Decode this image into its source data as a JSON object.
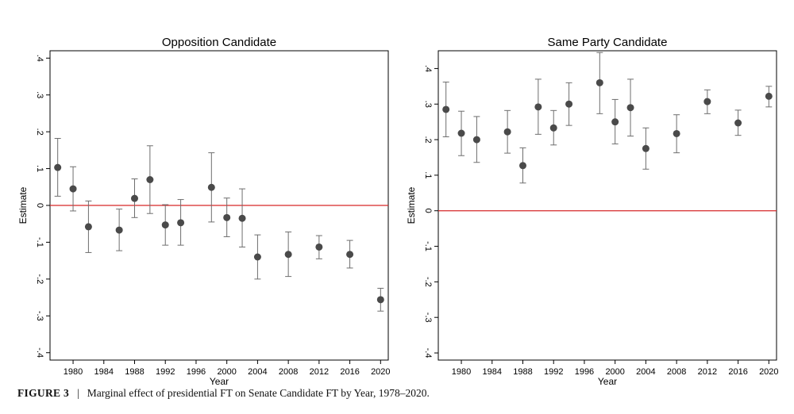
{
  "chart_data": [
    {
      "type": "scatter",
      "title": "Opposition Candidate",
      "xlabel": "Year",
      "ylabel": "Estimate",
      "x_ticks": [
        1980,
        1984,
        1988,
        1992,
        1996,
        2000,
        2004,
        2008,
        2012,
        2016,
        2020
      ],
      "x_tick_labels": [
        "1980",
        "1984",
        "1988",
        "1992",
        "1996",
        "2000",
        "2004",
        "2008",
        "2012",
        "2016",
        "2020"
      ],
      "xlim": [
        1977,
        2021
      ],
      "y_ticks": [
        -0.4,
        -0.3,
        -0.2,
        -0.1,
        0,
        0.1,
        0.2,
        0.3,
        0.4
      ],
      "y_tick_labels": [
        "-.4",
        "-.3",
        "-.2",
        "-.1",
        "0",
        ".1",
        ".2",
        ".3",
        ".4"
      ],
      "ylim": [
        -0.42,
        0.42
      ],
      "reference_line": 0,
      "points": [
        {
          "x": 1978,
          "y": 0.103,
          "lo": 0.025,
          "hi": 0.182
        },
        {
          "x": 1980,
          "y": 0.045,
          "lo": -0.015,
          "hi": 0.105
        },
        {
          "x": 1982,
          "y": -0.058,
          "lo": -0.128,
          "hi": 0.012
        },
        {
          "x": 1986,
          "y": -0.067,
          "lo": -0.123,
          "hi": -0.01
        },
        {
          "x": 1988,
          "y": 0.019,
          "lo": -0.033,
          "hi": 0.072
        },
        {
          "x": 1990,
          "y": 0.07,
          "lo": -0.022,
          "hi": 0.162
        },
        {
          "x": 1992,
          "y": -0.053,
          "lo": -0.108,
          "hi": 0.002
        },
        {
          "x": 1994,
          "y": -0.047,
          "lo": -0.108,
          "hi": 0.016
        },
        {
          "x": 1998,
          "y": 0.049,
          "lo": -0.045,
          "hi": 0.143
        },
        {
          "x": 2000,
          "y": -0.033,
          "lo": -0.085,
          "hi": 0.02
        },
        {
          "x": 2002,
          "y": -0.035,
          "lo": -0.113,
          "hi": 0.045
        },
        {
          "x": 2004,
          "y": -0.14,
          "lo": -0.2,
          "hi": -0.08
        },
        {
          "x": 2008,
          "y": -0.133,
          "lo": -0.193,
          "hi": -0.072
        },
        {
          "x": 2012,
          "y": -0.113,
          "lo": -0.145,
          "hi": -0.082
        },
        {
          "x": 2016,
          "y": -0.133,
          "lo": -0.17,
          "hi": -0.095
        },
        {
          "x": 2020,
          "y": -0.256,
          "lo": -0.287,
          "hi": -0.225
        }
      ]
    },
    {
      "type": "scatter",
      "title": "Same Party Candidate",
      "xlabel": "Year",
      "ylabel": "Estimate",
      "x_ticks": [
        1980,
        1984,
        1988,
        1992,
        1996,
        2000,
        2004,
        2008,
        2012,
        2016,
        2020
      ],
      "x_tick_labels": [
        "1980",
        "1984",
        "1988",
        "1992",
        "1996",
        "2000",
        "2004",
        "2008",
        "2012",
        "2016",
        "2020"
      ],
      "xlim": [
        1977,
        2021
      ],
      "y_ticks": [
        -0.4,
        -0.3,
        -0.2,
        -0.1,
        0,
        0.1,
        0.2,
        0.3,
        0.4
      ],
      "y_tick_labels": [
        "-.4",
        "-.3",
        "-.2",
        "-.1",
        "0",
        ".1",
        ".2",
        ".3",
        ".4"
      ],
      "ylim": [
        -0.42,
        0.45
      ],
      "reference_line": 0,
      "points": [
        {
          "x": 1978,
          "y": 0.285,
          "lo": 0.208,
          "hi": 0.362
        },
        {
          "x": 1980,
          "y": 0.218,
          "lo": 0.155,
          "hi": 0.28
        },
        {
          "x": 1982,
          "y": 0.2,
          "lo": 0.136,
          "hi": 0.265
        },
        {
          "x": 1986,
          "y": 0.222,
          "lo": 0.162,
          "hi": 0.282
        },
        {
          "x": 1988,
          "y": 0.127,
          "lo": 0.078,
          "hi": 0.177
        },
        {
          "x": 1990,
          "y": 0.292,
          "lo": 0.215,
          "hi": 0.37
        },
        {
          "x": 1992,
          "y": 0.233,
          "lo": 0.185,
          "hi": 0.282
        },
        {
          "x": 1994,
          "y": 0.3,
          "lo": 0.24,
          "hi": 0.36
        },
        {
          "x": 1998,
          "y": 0.36,
          "lo": 0.273,
          "hi": 0.445
        },
        {
          "x": 2000,
          "y": 0.25,
          "lo": 0.188,
          "hi": 0.313
        },
        {
          "x": 2002,
          "y": 0.29,
          "lo": 0.21,
          "hi": 0.37
        },
        {
          "x": 2004,
          "y": 0.175,
          "lo": 0.117,
          "hi": 0.233
        },
        {
          "x": 2008,
          "y": 0.217,
          "lo": 0.163,
          "hi": 0.27
        },
        {
          "x": 2012,
          "y": 0.307,
          "lo": 0.273,
          "hi": 0.34
        },
        {
          "x": 2016,
          "y": 0.247,
          "lo": 0.212,
          "hi": 0.283
        },
        {
          "x": 2020,
          "y": 0.322,
          "lo": 0.292,
          "hi": 0.35
        }
      ]
    }
  ],
  "caption": {
    "label": "FIGURE 3",
    "separator": "|",
    "text": "Marginal effect of presidential FT on Senate Candidate FT by Year, 1978–2020."
  },
  "colors": {
    "reference_line": "#d62728",
    "marker": "#4a4a4a",
    "errorbar": "#6e6e6e",
    "frame": "#000000"
  }
}
